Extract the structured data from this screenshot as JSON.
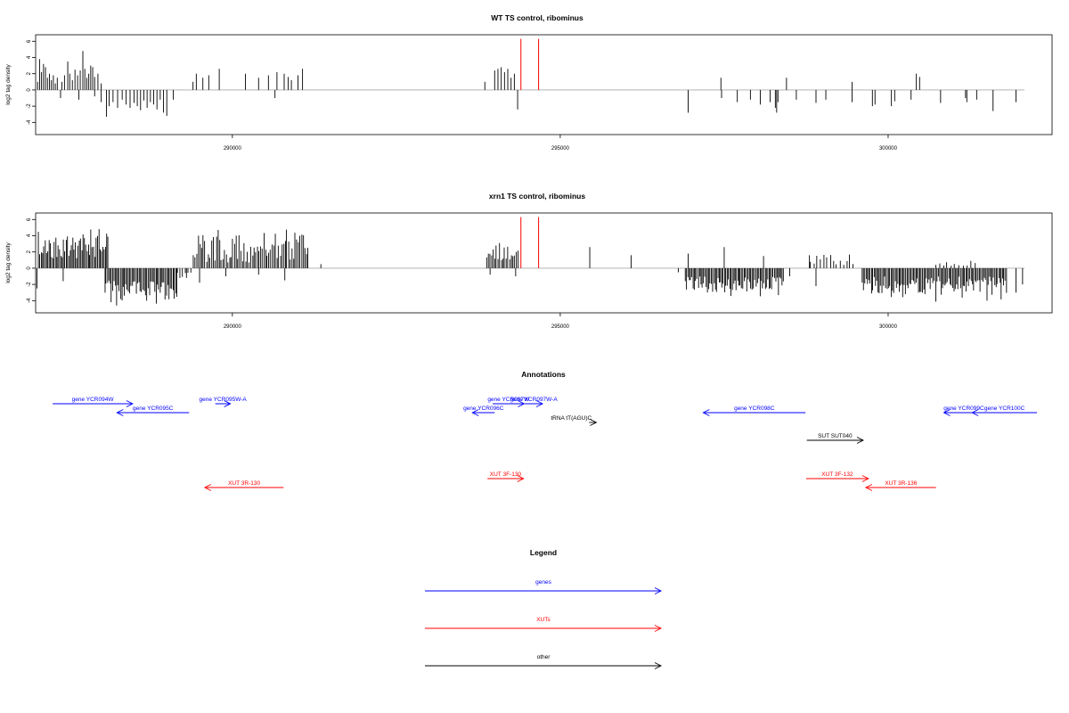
{
  "chart_data": [
    {
      "type": "bar",
      "title": "WT TS control, ribominus",
      "xlabel": "",
      "ylabel": "log2 tag density",
      "xlim": [
        287000,
        302500
      ],
      "ylim": [
        -5.5,
        6.8
      ],
      "yticks": [
        "-4",
        "-2",
        "0",
        "2",
        "4",
        "6"
      ],
      "xticks": [
        "290000",
        "295000",
        "300000"
      ],
      "highlight_positions": [
        294400,
        294670
      ],
      "highlight_color": "#ff0000",
      "plus_strand": [
        [
          287030,
          1.0
        ],
        [
          287060,
          3.8
        ],
        [
          287090,
          2.2
        ],
        [
          287120,
          3.2
        ],
        [
          287150,
          2.8
        ],
        [
          287180,
          1.5
        ],
        [
          287210,
          2.0
        ],
        [
          287240,
          1.2
        ],
        [
          287270,
          1.8
        ],
        [
          287300,
          0.8
        ],
        [
          287330,
          1.5
        ],
        [
          287400,
          1.0
        ],
        [
          287440,
          1.8
        ],
        [
          287490,
          3.5
        ],
        [
          287520,
          2.0
        ],
        [
          287560,
          1.2
        ],
        [
          287600,
          2.5
        ],
        [
          287640,
          1.8
        ],
        [
          287680,
          2.4
        ],
        [
          287720,
          4.8
        ],
        [
          287750,
          2.6
        ],
        [
          287780,
          1.5
        ],
        [
          287810,
          2.0
        ],
        [
          287840,
          3.0
        ],
        [
          287870,
          2.8
        ],
        [
          287900,
          1.6
        ],
        [
          287950,
          2.0
        ],
        [
          288000,
          0.8
        ],
        [
          289400,
          1.0
        ],
        [
          289450,
          2.0
        ],
        [
          289550,
          1.5
        ],
        [
          289640,
          1.8
        ],
        [
          289800,
          2.6
        ],
        [
          290200,
          2.0
        ],
        [
          290400,
          1.5
        ],
        [
          290550,
          1.8
        ],
        [
          290680,
          2.2
        ],
        [
          290790,
          2.0
        ],
        [
          290850,
          1.6
        ],
        [
          290900,
          1.2
        ],
        [
          291000,
          1.8
        ],
        [
          291070,
          2.6
        ],
        [
          293850,
          1.0
        ],
        [
          294000,
          2.4
        ],
        [
          294050,
          2.6
        ],
        [
          294100,
          2.8
        ],
        [
          294150,
          2.2
        ],
        [
          294200,
          2.6
        ],
        [
          294250,
          1.5
        ],
        [
          294300,
          2.0
        ],
        [
          297450,
          1.5
        ],
        [
          298450,
          1.5
        ],
        [
          299450,
          1.0
        ],
        [
          300430,
          2.0
        ],
        [
          300480,
          1.6
        ]
      ],
      "minus_strand": [
        [
          287380,
          -1.0
        ],
        [
          287660,
          -1.2
        ],
        [
          287900,
          -0.8
        ],
        [
          288000,
          -1.5
        ],
        [
          288080,
          -3.3
        ],
        [
          288120,
          -2.0
        ],
        [
          288180,
          -1.5
        ],
        [
          288250,
          -2.2
        ],
        [
          288320,
          -1.2
        ],
        [
          288380,
          -1.8
        ],
        [
          288440,
          -2.2
        ],
        [
          288500,
          -1.6
        ],
        [
          288550,
          -2.0
        ],
        [
          288600,
          -2.5
        ],
        [
          288650,
          -1.3
        ],
        [
          288700,
          -2.2
        ],
        [
          288750,
          -1.5
        ],
        [
          288800,
          -1.8
        ],
        [
          288850,
          -2.4
        ],
        [
          288900,
          -1.2
        ],
        [
          288950,
          -2.8
        ],
        [
          289000,
          -3.2
        ],
        [
          289100,
          -1.2
        ],
        [
          290650,
          -1.0
        ],
        [
          294350,
          -2.4
        ],
        [
          296950,
          -2.8
        ],
        [
          297460,
          -1.0
        ],
        [
          297700,
          -1.5
        ],
        [
          297900,
          -1.2
        ],
        [
          298050,
          -1.8
        ],
        [
          298200,
          -1.5
        ],
        [
          298280,
          -2.2
        ],
        [
          298300,
          -2.8
        ],
        [
          298320,
          -1.5
        ],
        [
          298600,
          -1.2
        ],
        [
          298900,
          -1.6
        ],
        [
          299050,
          -1.2
        ],
        [
          299450,
          -1.5
        ],
        [
          299760,
          -2.0
        ],
        [
          299800,
          -1.8
        ],
        [
          300050,
          -2.0
        ],
        [
          300100,
          -1.4
        ],
        [
          300350,
          -1.2
        ],
        [
          300800,
          -1.6
        ],
        [
          301180,
          -1.0
        ],
        [
          301200,
          -1.5
        ],
        [
          301350,
          -1.2
        ],
        [
          301600,
          -2.6
        ],
        [
          301950,
          -1.5
        ]
      ]
    },
    {
      "type": "bar",
      "title": "xrn1 TS control, ribominus",
      "xlabel": "",
      "ylabel": "log2 tag density",
      "xlim": [
        287000,
        302500
      ],
      "ylim": [
        -5.5,
        6.8
      ],
      "yticks": [
        "-4",
        "-2",
        "0",
        "2",
        "4",
        "6"
      ],
      "xticks": [
        "290000",
        "295000",
        "300000"
      ],
      "highlight_positions": [
        294400,
        294670
      ],
      "highlight_color": "#ff0000",
      "plus_dense_regions": [
        {
          "start": 287040,
          "end": 288100,
          "step": 20,
          "min": 1.2,
          "max": 5.9
        },
        {
          "start": 289400,
          "end": 291150,
          "step": 25,
          "min": 0.5,
          "max": 6.3
        },
        {
          "start": 293870,
          "end": 294350,
          "step": 25,
          "min": 0.8,
          "max": 3.5
        },
        {
          "start": 298800,
          "end": 299450,
          "step": 50,
          "min": 0.4,
          "max": 2.0
        },
        {
          "start": 300700,
          "end": 301300,
          "step": 60,
          "min": 0.3,
          "max": 1.0
        }
      ],
      "plus_strand": [
        [
          291350,
          0.5
        ],
        [
          295450,
          2.6
        ],
        [
          296080,
          1.6
        ],
        [
          296950,
          1.8
        ],
        [
          297500,
          2.6
        ],
        [
          298100,
          1.5
        ],
        [
          298800,
          1.6
        ]
      ],
      "minus_dense_regions": [
        {
          "start": 288050,
          "end": 289150,
          "step": 20,
          "min": 1.5,
          "max": 5.2
        },
        {
          "start": 289150,
          "end": 289350,
          "step": 40,
          "min": 0.5,
          "max": 2.0
        },
        {
          "start": 296900,
          "end": 298400,
          "step": 20,
          "min": 1.0,
          "max": 3.8
        },
        {
          "start": 299600,
          "end": 301800,
          "step": 20,
          "min": 1.0,
          "max": 4.3
        }
      ],
      "minus_strand": [
        [
          287020,
          -2.5
        ],
        [
          287420,
          -1.6
        ],
        [
          289300,
          -1.2
        ],
        [
          289500,
          -1.8
        ],
        [
          289900,
          -1.0
        ],
        [
          290400,
          -0.8
        ],
        [
          290800,
          -1.5
        ],
        [
          294320,
          -1.0
        ],
        [
          293930,
          -0.8
        ],
        [
          296800,
          -0.5
        ],
        [
          298500,
          -1.0
        ],
        [
          298900,
          -2.2
        ],
        [
          301950,
          -3.0
        ],
        [
          302050,
          -2.0
        ]
      ]
    },
    {
      "type": "table",
      "title": "Annotations",
      "features": [
        {
          "label": "gene YCR094W",
          "color": "#0000ff",
          "start": 287260,
          "end": 288480,
          "direction": "right",
          "row": 0
        },
        {
          "label": "gene YCR095C",
          "color": "#0000ff",
          "start": 288240,
          "end": 289340,
          "direction": "left",
          "row": 1
        },
        {
          "label": "gene YCR095W-A",
          "color": "#0000ff",
          "start": 289740,
          "end": 289970,
          "direction": "right",
          "row": 0
        },
        {
          "label": "gene YCR096C",
          "color": "#0000ff",
          "start": 293660,
          "end": 294000,
          "direction": "left",
          "row": 1
        },
        {
          "label": "gene YCR097W",
          "color": "#0000ff",
          "start": 293970,
          "end": 294450,
          "direction": "right",
          "row": 0
        },
        {
          "label": "gene YCR097W-A",
          "color": "#0000ff",
          "start": 294460,
          "end": 294730,
          "direction": "right",
          "row": 0
        },
        {
          "label": "tRNA tT(AGU)C",
          "color": "#000000",
          "start": 295440,
          "end": 295550,
          "direction": "right",
          "row": 2
        },
        {
          "label": "gene YCR098C",
          "color": "#0000ff",
          "start": 297180,
          "end": 298740,
          "direction": "left",
          "row": 1
        },
        {
          "label": "SUT SUT040",
          "color": "#000000",
          "start": 298760,
          "end": 299620,
          "direction": "right",
          "row": 3
        },
        {
          "label": "gene YCR099C",
          "color": "#0000ff",
          "start": 300850,
          "end": 301460,
          "direction": "left",
          "row": 1
        },
        {
          "label": "gene YCR100C",
          "color": "#0000ff",
          "start": 301280,
          "end": 302270,
          "direction": "left",
          "row": 1
        },
        {
          "label": "XUT 3R-130",
          "color": "#ff0000",
          "start": 289580,
          "end": 290780,
          "direction": "left",
          "row": 5
        },
        {
          "label": "XUT 3F-130",
          "color": "#ff0000",
          "start": 293890,
          "end": 294440,
          "direction": "right",
          "row": 4
        },
        {
          "label": "XUT 3F-132",
          "color": "#ff0000",
          "start": 298750,
          "end": 299700,
          "direction": "right",
          "row": 4
        },
        {
          "label": "XUT 3R-136",
          "color": "#ff0000",
          "start": 299660,
          "end": 300730,
          "direction": "left",
          "row": 5
        }
      ]
    },
    {
      "type": "table",
      "title": "Legend",
      "entries": [
        {
          "label": "genes",
          "color": "#0000ff"
        },
        {
          "label": "XUTs",
          "color": "#ff0000"
        },
        {
          "label": "other",
          "color": "#000000"
        }
      ]
    }
  ]
}
